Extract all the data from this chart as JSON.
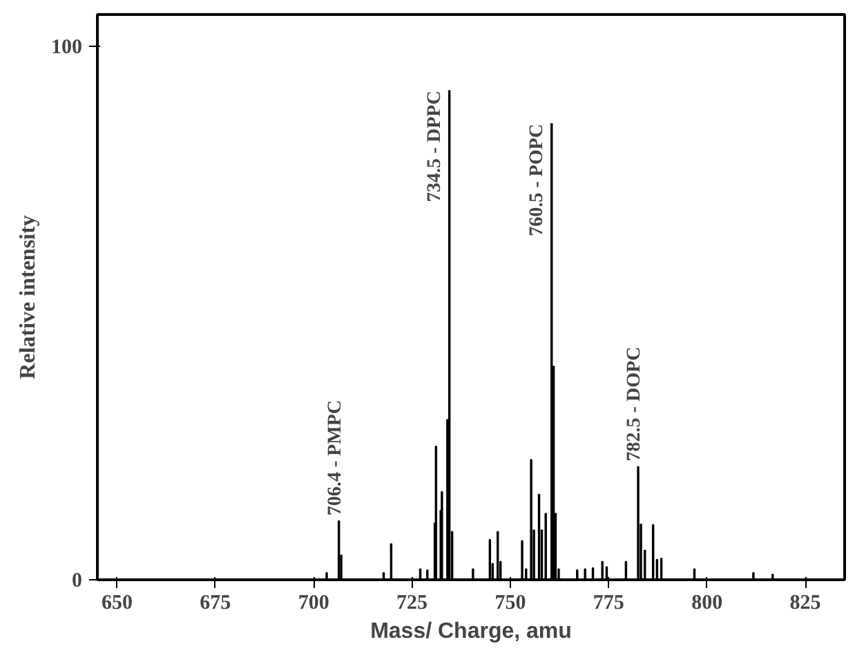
{
  "chart_data": {
    "type": "bar",
    "xlabel": "Mass/ Charge, amu",
    "ylabel": "Relative intensity",
    "x": [
      703.3,
      706.4,
      707,
      717.8,
      719.7,
      727.1,
      728.9,
      730.8,
      731.1,
      732.3,
      732.6,
      734.0,
      734.5,
      735.2,
      740.5,
      744.8,
      745.5,
      746.8,
      747.5,
      753,
      754,
      755.3,
      756,
      757.3,
      758,
      759,
      760.5,
      761.0,
      761.5,
      762.3,
      767,
      769,
      771,
      773.4,
      774.5,
      779.4,
      782.5,
      783.2,
      784.2,
      786.3,
      787.3,
      788.4,
      796.8,
      811.8,
      816.7
    ],
    "values": [
      1.3,
      11,
      4.6,
      1.3,
      6.7,
      2,
      1.8,
      10.6,
      25,
      13,
      16.5,
      30,
      91.7,
      9,
      2,
      7.5,
      3,
      9,
      3.4,
      7.3,
      2,
      22.5,
      9.3,
      16,
      9.3,
      12.4,
      85.5,
      40,
      12.4,
      2,
      1.8,
      2,
      2.2,
      3.4,
      2.4,
      3.4,
      21.2,
      10.4,
      5.5,
      10.3,
      3.8,
      4,
      2,
      1.3,
      1
    ],
    "color": "#000000",
    "xlim": [
      645,
      835
    ],
    "ylim": [
      0,
      106
    ],
    "xticks": [
      650,
      675,
      700,
      725,
      750,
      775,
      800,
      825
    ],
    "yticks": [
      0,
      100
    ],
    "grid": false,
    "annotations": [
      {
        "text": "706.4 - PMPC",
        "x": 706.4,
        "y": 11
      },
      {
        "text": "734.5 - DPPC",
        "x": 734.5,
        "y": 91.7
      },
      {
        "text": "760.5 - POPC",
        "x": 760.5,
        "y": 85.5
      },
      {
        "text": "782.5 - DOPC",
        "x": 782.5,
        "y": 21.2
      }
    ]
  }
}
